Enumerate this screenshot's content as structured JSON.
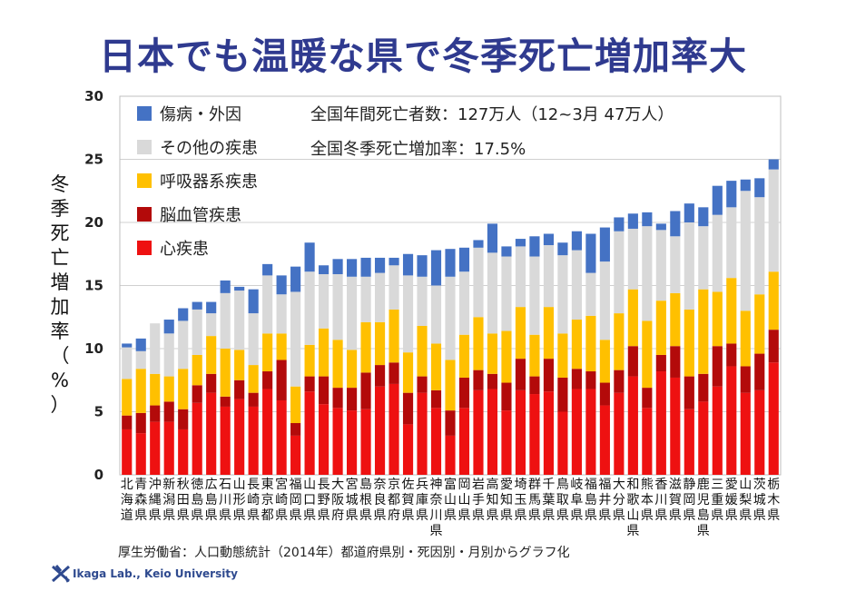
{
  "title": "日本でも温暖な県で冬季死亡増加率大",
  "source": "厚生労働省：人口動態統計（2014年）都道府県別・死因別・月別からグラフ化",
  "lab": "Ikaga Lab., Keio University",
  "chart_data": {
    "type": "bar",
    "stacked": true,
    "ylabel": "冬季死亡増加率（%）",
    "ylim": [
      0,
      30
    ],
    "yticks": [
      0,
      5,
      10,
      15,
      20,
      25,
      30
    ],
    "annotations": [
      "全国年間死亡者数：127万人（12~3月 47万人）",
      "全国冬季死亡増加率：17.5%"
    ],
    "legend_placement": "top-left",
    "categories": [
      "北海道",
      "青森県",
      "沖縄県",
      "新潟県",
      "秋田県",
      "徳島県",
      "広島県",
      "石川県",
      "山形県",
      "長崎県",
      "東京都",
      "宮崎県",
      "福岡県",
      "山口県",
      "長野県",
      "大阪府",
      "宮城県",
      "島根県",
      "奈良県",
      "京都府",
      "佐賀県",
      "兵庫県",
      "神奈川県",
      "富山県",
      "岡山県",
      "岩手県",
      "高知県",
      "愛知県",
      "埼玉県",
      "群馬県",
      "千葉県",
      "鳥取県",
      "岐阜県",
      "福島県",
      "福井県",
      "大分県",
      "和歌山県",
      "熊本県",
      "香川県",
      "滋賀県",
      "静岡県",
      "鹿児島県",
      "三重県",
      "愛媛県",
      "山梨県",
      "茨城県",
      "栃木県"
    ],
    "series": [
      {
        "name": "心疾患",
        "color": "#ee1111",
        "values": [
          3.6,
          3.3,
          4.2,
          4.2,
          3.6,
          5.7,
          6.5,
          5.4,
          6.0,
          5.4,
          6.8,
          5.9,
          3.1,
          6.6,
          5.6,
          5.3,
          5.1,
          5.2,
          7.0,
          7.2,
          4.0,
          6.5,
          5.3,
          3.1,
          5.3,
          6.7,
          6.8,
          5.1,
          6.7,
          6.4,
          6.6,
          5.0,
          6.8,
          6.8,
          5.5,
          6.5,
          7.8,
          5.3,
          8.2,
          7.7,
          5.2,
          5.8,
          7.0,
          8.6,
          6.5,
          6.7,
          8.9
        ]
      },
      {
        "name": "脳血管疾患",
        "color": "#b30a0a",
        "values": [
          1.1,
          1.6,
          1.3,
          1.6,
          1.6,
          1.4,
          1.5,
          0.8,
          1.5,
          1.1,
          1.4,
          3.2,
          1.0,
          1.2,
          2.2,
          1.6,
          1.8,
          2.9,
          1.7,
          1.7,
          2.5,
          1.3,
          1.4,
          2.0,
          2.4,
          1.6,
          1.2,
          2.2,
          2.5,
          1.4,
          2.6,
          2.7,
          1.6,
          1.4,
          1.8,
          1.8,
          2.4,
          1.6,
          1.3,
          2.5,
          2.6,
          2.2,
          3.2,
          1.8,
          2.1,
          2.9,
          2.6
        ]
      },
      {
        "name": "呼吸器系疾患",
        "color": "#ffc000",
        "values": [
          2.9,
          3.5,
          2.5,
          2.0,
          3.2,
          2.4,
          3.0,
          3.8,
          2.4,
          2.2,
          3.0,
          2.1,
          2.9,
          2.5,
          3.8,
          3.8,
          3.0,
          4.0,
          3.4,
          4.2,
          3.2,
          4.0,
          3.7,
          4.0,
          3.4,
          4.2,
          3.2,
          4.1,
          4.1,
          3.3,
          4.1,
          3.5,
          3.9,
          4.4,
          3.4,
          4.5,
          4.5,
          5.3,
          4.3,
          4.2,
          5.3,
          6.7,
          4.3,
          5.2,
          4.4,
          4.7,
          4.6
        ]
      },
      {
        "name": "その他の疾患",
        "color": "#d9d9d9",
        "values": [
          2.5,
          1.4,
          4.0,
          3.4,
          3.8,
          3.6,
          1.8,
          4.4,
          4.7,
          4.1,
          4.6,
          3.1,
          7.5,
          5.8,
          4.3,
          5.2,
          5.8,
          3.6,
          3.9,
          3.5,
          6.1,
          3.9,
          4.6,
          6.6,
          5.0,
          5.5,
          6.4,
          5.9,
          4.8,
          6.2,
          4.9,
          6.2,
          5.5,
          3.4,
          6.2,
          6.5,
          4.8,
          7.5,
          5.6,
          4.5,
          6.9,
          5.0,
          6.1,
          5.6,
          9.5,
          7.7,
          8.1
        ]
      },
      {
        "name": "傷病・外因",
        "color": "#4472c4",
        "values": [
          0.3,
          1.0,
          0.0,
          1.1,
          1.0,
          0.6,
          0.9,
          1.0,
          0.3,
          1.9,
          0.9,
          1.5,
          2.0,
          2.3,
          0.7,
          1.2,
          1.4,
          1.5,
          1.2,
          0.6,
          1.7,
          1.7,
          2.8,
          2.2,
          1.9,
          0.6,
          2.3,
          0.8,
          0.6,
          1.6,
          0.9,
          1.0,
          1.5,
          3.1,
          2.7,
          1.1,
          1.2,
          1.1,
          0.5,
          2.0,
          1.5,
          1.5,
          2.3,
          2.1,
          0.9,
          1.5,
          0.8
        ]
      }
    ]
  }
}
